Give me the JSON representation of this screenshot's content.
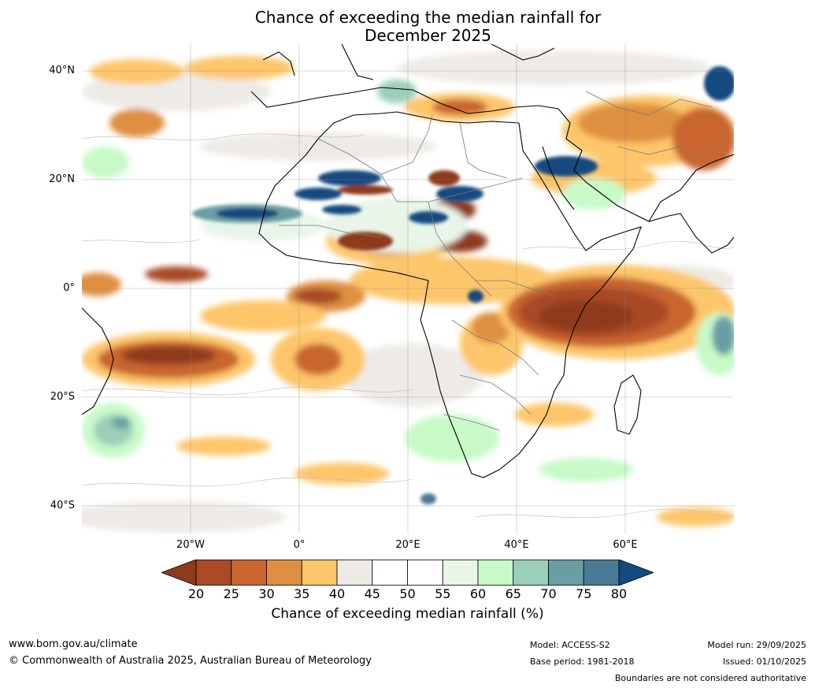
{
  "title": {
    "line1": "Chance of exceeding the median rainfall for",
    "line2": "December 2025"
  },
  "map": {
    "lat_labels": [
      "40°N",
      "20°N",
      "0°",
      "20°S",
      "40°S"
    ],
    "lon_labels": [
      "20°W",
      "0°",
      "20°E",
      "40°E",
      "60°E"
    ],
    "extent": {
      "lon_min": -40,
      "lon_max": 80,
      "lat_min": -45,
      "lat_max": 45
    }
  },
  "colorbar": {
    "ticks": [
      "20",
      "25",
      "30",
      "35",
      "40",
      "45",
      "50",
      "55",
      "60",
      "65",
      "70",
      "75",
      "80"
    ],
    "colors": [
      "#8e3a1f",
      "#aa4a27",
      "#c9652f",
      "#df8f41",
      "#fdc66b",
      "#eeebe6",
      "#ffffff",
      "#ffffff",
      "#e8f5e8",
      "#c8fac8",
      "#9bcfba",
      "#6a9ea3",
      "#4a7a95",
      "#134a7f"
    ],
    "label": "Chance of exceeding median rainfall (%)"
  },
  "footer": {
    "website": "www.bom.gov.au/climate",
    "copyright": "© Commonwealth of Australia 2025, Australian Bureau of Meteorology",
    "model": "Model: ACCESS-S2",
    "base_period": "Base period: 1981-2018",
    "model_run": "Model run: 29/09/2025",
    "issued": "Issued: 01/10/2025",
    "disclaimer": "Boundaries are not considered authoritative"
  }
}
